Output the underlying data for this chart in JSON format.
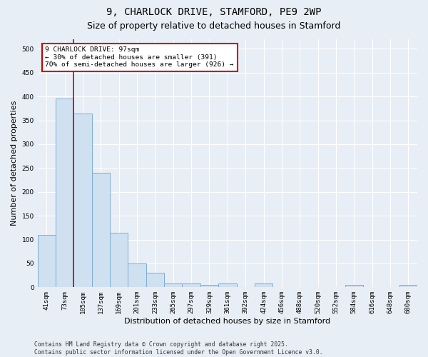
{
  "title1": "9, CHARLOCK DRIVE, STAMFORD, PE9 2WP",
  "title2": "Size of property relative to detached houses in Stamford",
  "xlabel": "Distribution of detached houses by size in Stamford",
  "ylabel": "Number of detached properties",
  "categories": [
    "41sqm",
    "73sqm",
    "105sqm",
    "137sqm",
    "169sqm",
    "201sqm",
    "233sqm",
    "265sqm",
    "297sqm",
    "329sqm",
    "361sqm",
    "392sqm",
    "424sqm",
    "456sqm",
    "488sqm",
    "520sqm",
    "552sqm",
    "584sqm",
    "616sqm",
    "648sqm",
    "680sqm"
  ],
  "values": [
    110,
    395,
    365,
    240,
    115,
    50,
    30,
    8,
    8,
    5,
    8,
    0,
    8,
    0,
    0,
    0,
    0,
    5,
    0,
    0,
    5
  ],
  "bar_color": "#cfe0f0",
  "bar_edge_color": "#7daed4",
  "vline_color": "#cc0000",
  "vline_x": 1.5,
  "annotation_text": "9 CHARLOCK DRIVE: 97sqm\n← 30% of detached houses are smaller (391)\n70% of semi-detached houses are larger (926) →",
  "annotation_box_color": "#cc0000",
  "annotation_fill": "white",
  "background_color": "#e8eef5",
  "plot_bg_color": "#e8eef5",
  "ylim": [
    0,
    520
  ],
  "yticks": [
    0,
    50,
    100,
    150,
    200,
    250,
    300,
    350,
    400,
    450,
    500
  ],
  "footer1": "Contains HM Land Registry data © Crown copyright and database right 2025.",
  "footer2": "Contains public sector information licensed under the Open Government Licence v3.0.",
  "title_fontsize": 10,
  "subtitle_fontsize": 9,
  "tick_fontsize": 6.5,
  "label_fontsize": 8,
  "footer_fontsize": 5.8
}
